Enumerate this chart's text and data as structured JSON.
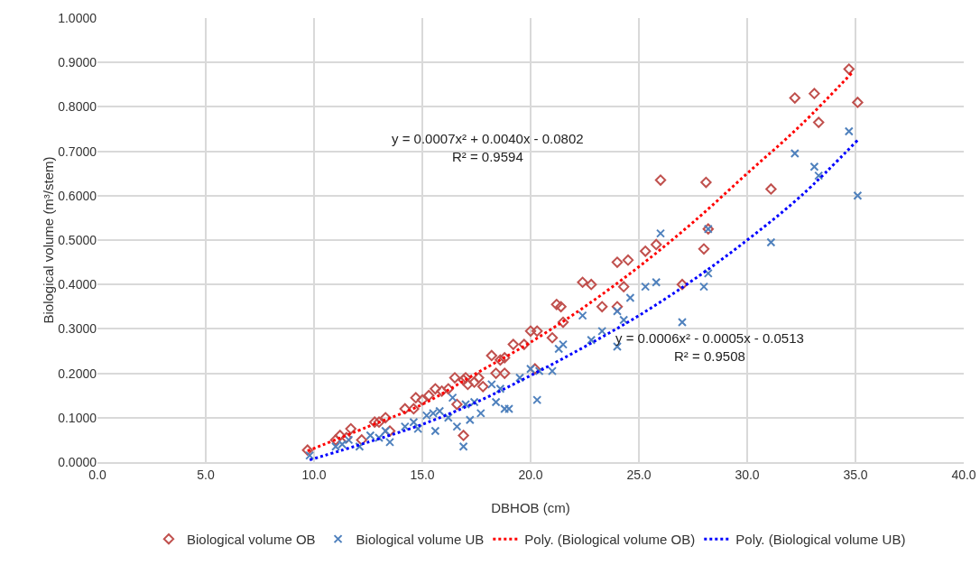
{
  "chart_data": {
    "type": "scatter",
    "xlabel": "DBHOB (cm)",
    "ylabel": "Biological volume (m³/stem)",
    "xlim": [
      0,
      40
    ],
    "ylim": [
      0,
      1
    ],
    "xticks": [
      {
        "value": 0,
        "label": "0.0"
      },
      {
        "value": 5,
        "label": "5.0"
      },
      {
        "value": 10,
        "label": "10.0"
      },
      {
        "value": 15,
        "label": "15.0"
      },
      {
        "value": 20,
        "label": "20.0"
      },
      {
        "value": 25,
        "label": "25.0"
      },
      {
        "value": 30,
        "label": "30.0"
      },
      {
        "value": 35,
        "label": "35.0"
      },
      {
        "value": 40,
        "label": "40.0"
      }
    ],
    "yticks": [
      {
        "value": 0,
        "label": "0.0000"
      },
      {
        "value": 0.1,
        "label": "0.1000"
      },
      {
        "value": 0.2,
        "label": "0.2000"
      },
      {
        "value": 0.3,
        "label": "0.3000"
      },
      {
        "value": 0.4,
        "label": "0.4000"
      },
      {
        "value": 0.5,
        "label": "0.5000"
      },
      {
        "value": 0.6,
        "label": "0.6000"
      },
      {
        "value": 0.7,
        "label": "0.7000"
      },
      {
        "value": 0.8,
        "label": "0.8000"
      },
      {
        "value": 0.9,
        "label": "0.9000"
      },
      {
        "value": 1,
        "label": "1.0000"
      }
    ],
    "grid": true,
    "legend": "bottom",
    "annotations": [
      "y = 0.0007x² + 0.0040x - 0.0802\nR² = 0.9594",
      "y = 0.0006x² - 0.0005x - 0.0513\nR² = 0.9508"
    ],
    "series": [
      {
        "name": "Biological volume OB",
        "color": "#c0504d",
        "marker": "diamond",
        "x": [
          9.7,
          11.0,
          11.2,
          11.5,
          11.7,
          12.2,
          12.8,
          13.0,
          13.3,
          13.5,
          14.2,
          14.6,
          14.7,
          15.0,
          15.3,
          15.6,
          15.9,
          16.2,
          16.5,
          16.6,
          16.9,
          17.0,
          17.1,
          17.4,
          17.6,
          17.8,
          16.9,
          18.2,
          18.4,
          18.6,
          18.8,
          18.8,
          19.2,
          19.7,
          20.0,
          20.3,
          20.2,
          21.0,
          21.2,
          21.4,
          21.5,
          22.4,
          22.8,
          23.3,
          24.0,
          24.0,
          24.3,
          24.5,
          25.3,
          25.8,
          26.0,
          27.0,
          28.0,
          28.1,
          28.2,
          31.1,
          32.2,
          33.1,
          33.3,
          34.7,
          35.1
        ],
        "values": [
          0.027,
          0.05,
          0.06,
          0.055,
          0.075,
          0.05,
          0.09,
          0.09,
          0.1,
          0.07,
          0.12,
          0.12,
          0.145,
          0.14,
          0.15,
          0.165,
          0.16,
          0.165,
          0.19,
          0.13,
          0.185,
          0.19,
          0.175,
          0.18,
          0.19,
          0.17,
          0.06,
          0.24,
          0.2,
          0.23,
          0.235,
          0.2,
          0.265,
          0.265,
          0.295,
          0.295,
          0.21,
          0.28,
          0.355,
          0.35,
          0.315,
          0.405,
          0.4,
          0.35,
          0.35,
          0.45,
          0.395,
          0.455,
          0.475,
          0.49,
          0.635,
          0.4,
          0.48,
          0.63,
          0.525,
          0.615,
          0.82,
          0.83,
          0.765,
          0.885,
          0.81
        ]
      },
      {
        "name": "Biological volume UB",
        "color": "#4f81bd",
        "marker": "cross",
        "x": [
          9.8,
          11.0,
          11.3,
          11.6,
          12.1,
          12.6,
          13.0,
          13.3,
          13.5,
          14.2,
          14.6,
          14.8,
          15.2,
          15.5,
          15.6,
          15.8,
          16.2,
          16.4,
          16.6,
          16.9,
          17.0,
          17.2,
          17.4,
          17.7,
          18.2,
          18.4,
          18.6,
          18.8,
          19.0,
          19.5,
          20.0,
          20.3,
          20.4,
          21.0,
          21.3,
          21.5,
          22.4,
          22.8,
          23.3,
          24.0,
          24.0,
          24.3,
          24.6,
          25.3,
          25.8,
          26.0,
          27.0,
          28.0,
          28.2,
          28.2,
          31.1,
          32.2,
          33.1,
          33.3,
          34.7,
          35.1
        ],
        "values": [
          0.015,
          0.035,
          0.04,
          0.05,
          0.035,
          0.06,
          0.055,
          0.07,
          0.045,
          0.08,
          0.09,
          0.075,
          0.105,
          0.11,
          0.07,
          0.115,
          0.1,
          0.145,
          0.08,
          0.035,
          0.13,
          0.095,
          0.135,
          0.11,
          0.175,
          0.135,
          0.165,
          0.12,
          0.12,
          0.19,
          0.21,
          0.14,
          0.205,
          0.205,
          0.255,
          0.265,
          0.33,
          0.275,
          0.295,
          0.26,
          0.34,
          0.32,
          0.37,
          0.395,
          0.405,
          0.515,
          0.315,
          0.395,
          0.425,
          0.525,
          0.495,
          0.695,
          0.665,
          0.645,
          0.745,
          0.6
        ]
      },
      {
        "name": "Poly. (Biological volume OB)",
        "type": "line",
        "color": "#ff0000",
        "line_style": "dotted",
        "marker": "none",
        "x": [
          9.7,
          12.5,
          15,
          17.5,
          20,
          22.5,
          25,
          27.5,
          30,
          32.5,
          34.9
        ],
        "values": [
          0.025,
          0.08,
          0.13,
          0.2,
          0.27,
          0.35,
          0.44,
          0.54,
          0.65,
          0.76,
          0.88
        ]
      },
      {
        "name": "Poly. (Biological volume UB)",
        "type": "line",
        "color": "#0000ff",
        "line_style": "dotted",
        "marker": "none",
        "x": [
          9.8,
          12.5,
          15,
          17.5,
          20,
          22.5,
          25,
          27.5,
          30,
          32.5,
          35.1
        ],
        "values": [
          0.005,
          0.045,
          0.085,
          0.135,
          0.195,
          0.26,
          0.33,
          0.41,
          0.5,
          0.6,
          0.725
        ]
      }
    ]
  }
}
